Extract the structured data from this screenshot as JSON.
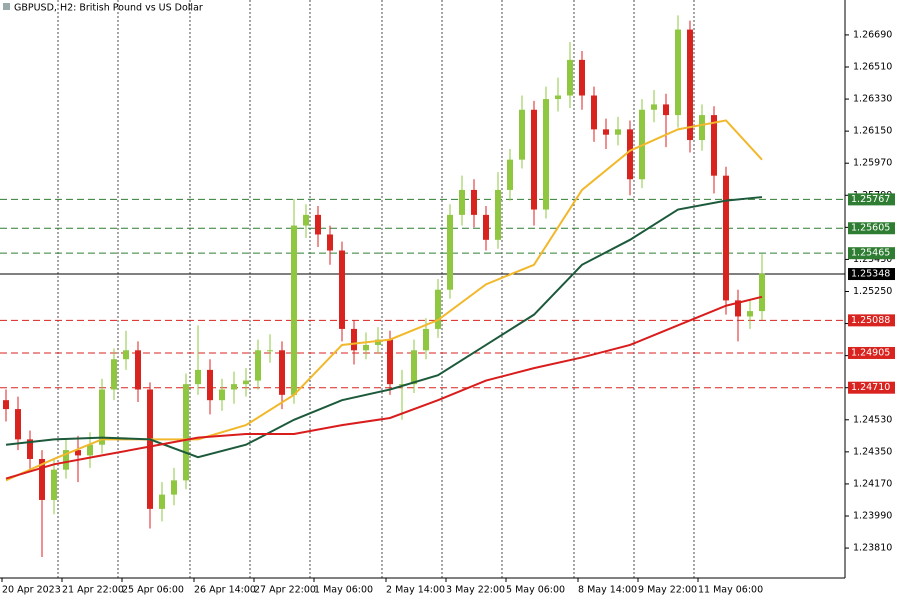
{
  "chart_data": {
    "type": "candlestick",
    "title": "GBPUSD, H2:  British Pound vs US Dollar",
    "categories": [
      "20 Apr 2023",
      null,
      null,
      null,
      null,
      "21 Apr 22:00",
      null,
      null,
      null,
      null,
      "25 Apr 06:00",
      null,
      null,
      null,
      null,
      null,
      "26 Apr 14:00",
      null,
      null,
      null,
      null,
      "27 Apr 22:00",
      null,
      null,
      null,
      null,
      "1 May 06:00",
      null,
      null,
      null,
      null,
      null,
      "2 May 14:00",
      null,
      null,
      null,
      null,
      "3 May 22:00",
      null,
      null,
      null,
      null,
      "5 May 06:00",
      null,
      null,
      null,
      null,
      null,
      "8 May 14:00",
      null,
      null,
      null,
      null,
      "9 May 22:00",
      null,
      null,
      null,
      null,
      "11 May 06:00",
      null,
      null,
      null,
      null,
      null
    ],
    "open": [
      1.2464,
      1.2459,
      1.2442,
      1.2431,
      1.2408,
      1.2425,
      1.2436,
      1.2433,
      1.2439,
      1.247,
      1.2487,
      1.2492,
      1.247,
      1.2403,
      1.2411,
      1.2419,
      1.2473,
      1.2481,
      1.2464,
      1.247,
      1.2473,
      1.2475,
      1.2492,
      1.2492,
      1.2467,
      1.2562,
      1.2568,
      1.2557,
      1.2548,
      1.2504,
      1.2492,
      1.2495,
      1.2498,
      1.2473,
      1.2473,
      1.2492,
      1.2504,
      1.2526,
      1.2568,
      1.2582,
      1.2568,
      1.2554,
      1.2582,
      1.2599,
      1.2627,
      1.2571,
      1.2633,
      1.2635,
      1.2655,
      1.2635,
      1.2616,
      1.2613,
      1.2616,
      1.2588,
      1.2627,
      1.263,
      1.2624,
      1.2672,
      1.261,
      1.2624,
      1.259,
      1.252,
      1.2511,
      1.2514
    ],
    "high": [
      1.247,
      1.2466,
      1.2447,
      1.2436,
      1.2431,
      1.2442,
      1.2444,
      1.2446,
      1.2476,
      1.2493,
      1.2503,
      1.2497,
      1.2474,
      1.2418,
      1.2426,
      1.2479,
      1.2506,
      1.2487,
      1.2476,
      1.248,
      1.2482,
      1.2498,
      1.2501,
      1.2497,
      1.2577,
      1.2574,
      1.2573,
      1.2562,
      1.2553,
      1.2509,
      1.2502,
      1.2505,
      1.2503,
      1.2481,
      1.2498,
      1.251,
      1.2532,
      1.2574,
      1.259,
      1.2588,
      1.2573,
      1.2592,
      1.2605,
      1.2635,
      1.2632,
      1.264,
      1.2645,
      1.2665,
      1.266,
      1.264,
      1.2622,
      1.2623,
      1.2621,
      1.2633,
      1.2638,
      1.2636,
      1.268,
      1.2677,
      1.263,
      1.2629,
      1.2595,
      1.2526,
      1.252,
      1.2546
    ],
    "low": [
      1.2452,
      1.2436,
      1.2424,
      1.2376,
      1.24,
      1.242,
      1.2418,
      1.2426,
      1.2434,
      1.2464,
      1.2481,
      1.2463,
      1.2392,
      1.2396,
      1.2405,
      1.2414,
      1.2467,
      1.2456,
      1.2458,
      1.2462,
      1.2466,
      1.247,
      1.2485,
      1.2459,
      1.2462,
      1.2555,
      1.255,
      1.254,
      1.2497,
      1.2484,
      1.2487,
      1.249,
      1.2467,
      1.2453,
      1.2468,
      1.2487,
      1.2499,
      1.2521,
      1.2562,
      1.2561,
      1.2548,
      1.2549,
      1.2576,
      1.2594,
      1.2562,
      1.2566,
      1.2626,
      1.2628,
      1.2627,
      1.2609,
      1.2605,
      1.2607,
      1.2579,
      1.2583,
      1.262,
      1.2606,
      1.2617,
      1.2603,
      1.2604,
      1.258,
      1.2512,
      1.2497,
      1.2504,
      1.2509
    ],
    "close": [
      1.2459,
      1.2442,
      1.2431,
      1.2408,
      1.2425,
      1.2436,
      1.2433,
      1.2439,
      1.247,
      1.2487,
      1.2492,
      1.247,
      1.2403,
      1.2411,
      1.2419,
      1.2473,
      1.2481,
      1.2464,
      1.247,
      1.2473,
      1.2475,
      1.2492,
      1.2492,
      1.2467,
      1.2562,
      1.2568,
      1.2557,
      1.2548,
      1.2504,
      1.2492,
      1.2495,
      1.2498,
      1.2473,
      1.2473,
      1.2492,
      1.2504,
      1.2526,
      1.2568,
      1.2582,
      1.2568,
      1.2554,
      1.2582,
      1.2599,
      1.2627,
      1.2571,
      1.2633,
      1.2635,
      1.2655,
      1.2635,
      1.2616,
      1.2613,
      1.2616,
      1.2588,
      1.2627,
      1.263,
      1.2624,
      1.2672,
      1.261,
      1.2624,
      1.259,
      1.252,
      1.2511,
      1.2514,
      1.2535
    ],
    "up_color": "#8fc740",
    "down_color": "#d9231f",
    "lines": [
      {
        "color": "#f2b82b",
        "x": [
          0,
          4,
          8,
          12,
          16,
          20,
          24,
          28,
          32,
          36,
          40,
          44,
          48,
          52,
          56,
          60,
          63
        ],
        "values": [
          1.2419,
          1.2431,
          1.2442,
          1.2442,
          1.2442,
          1.245,
          1.2467,
          1.2495,
          1.2498,
          1.2509,
          1.2529,
          1.254,
          1.2582,
          1.2604,
          1.2616,
          1.2621,
          1.2599
        ]
      },
      {
        "color": "#1d5a3c",
        "x": [
          0,
          4,
          8,
          12,
          16,
          20,
          24,
          28,
          32,
          36,
          40,
          44,
          48,
          52,
          56,
          60,
          63
        ],
        "values": [
          1.2439,
          1.2442,
          1.2443,
          1.2442,
          1.2432,
          1.2439,
          1.2453,
          1.2464,
          1.247,
          1.2478,
          1.2495,
          1.2512,
          1.254,
          1.2554,
          1.2571,
          1.2576,
          1.2578
        ]
      },
      {
        "color": "#d91c1c",
        "x": [
          0,
          4,
          8,
          12,
          16,
          20,
          24,
          28,
          32,
          36,
          40,
          44,
          48,
          52,
          56,
          60,
          63
        ],
        "values": [
          1.242,
          1.2428,
          1.2433,
          1.2438,
          1.2443,
          1.2445,
          1.2445,
          1.245,
          1.2454,
          1.2464,
          1.2475,
          1.2482,
          1.2488,
          1.2495,
          1.2506,
          1.2517,
          1.2522
        ]
      }
    ],
    "levels": [
      {
        "value": 1.25767,
        "label": "1.25767",
        "color": "#2f7d32",
        "style": "dashed"
      },
      {
        "value": 1.25605,
        "label": "1.25605",
        "color": "#2f7d32",
        "style": "dashed"
      },
      {
        "value": 1.25465,
        "label": "1.25465",
        "color": "#2f7d32",
        "style": "dashed"
      },
      {
        "value": 1.25348,
        "label": "1.25348",
        "color": "#000000",
        "style": "solid"
      },
      {
        "value": 1.25088,
        "label": "1.25088",
        "color": "#d9231f",
        "style": "dashed"
      },
      {
        "value": 1.24905,
        "label": "1.24905",
        "color": "#d9231f",
        "style": "dashed"
      },
      {
        "value": 1.2471,
        "label": "1.24710",
        "color": "#d9231f",
        "style": "dashed"
      }
    ],
    "ylim": [
      1.23642,
      1.26886
    ],
    "yticks": [
      {
        "value": 1.2381,
        "label": "1.23810"
      },
      {
        "value": 1.2399,
        "label": "1.23990"
      },
      {
        "value": 1.2417,
        "label": "1.24170"
      },
      {
        "value": 1.2435,
        "label": "1.24350"
      },
      {
        "value": 1.2453,
        "label": "1.24530"
      },
      {
        "value": 1.2471,
        "label": "1.24710"
      },
      {
        "value": 1.2489,
        "label": "1.24890"
      },
      {
        "value": 1.2507,
        "label": "1.25070"
      },
      {
        "value": 1.2525,
        "label": "1.25250"
      },
      {
        "value": 1.2543,
        "label": "1.25430"
      },
      {
        "value": 1.2561,
        "label": "1.25610"
      },
      {
        "value": 1.2579,
        "label": "1.25790"
      },
      {
        "value": 1.2597,
        "label": "1.25970"
      },
      {
        "value": 1.2615,
        "label": "1.26150"
      },
      {
        "value": 1.2633,
        "label": "1.26330"
      },
      {
        "value": 1.2651,
        "label": "1.26510"
      },
      {
        "value": 1.2669,
        "label": "1.26690"
      }
    ],
    "grid": true
  }
}
